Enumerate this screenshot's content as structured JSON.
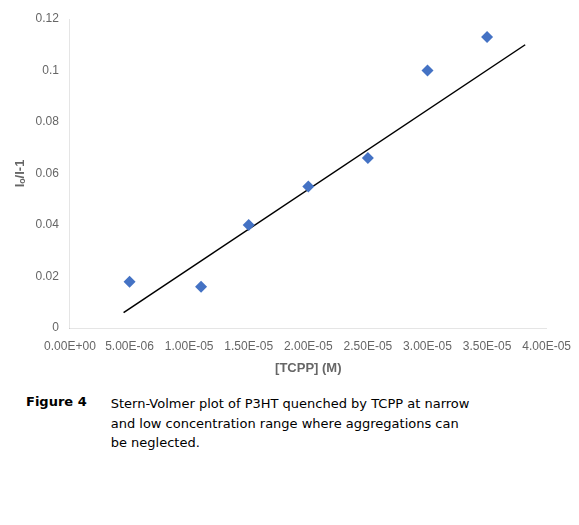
{
  "chart_data": {
    "type": "scatter",
    "x_label": "[TCPP] (M)",
    "y_label": "Iₒ/I-1",
    "annotations": [
      "Figure 4",
      "Stern-Volmer plot of P3HT quenched by TCPP at narrow\nand low concentration range where aggregations can\nbe neglected."
    ],
    "series": [
      {
        "type": "scatter",
        "marker": "diamond",
        "color": "#4472c4",
        "x": [
          5e-06,
          1.1e-05,
          1.5e-05,
          2e-05,
          2.5e-05,
          3e-05,
          3.5e-05
        ],
        "values": [
          0.018,
          0.016,
          0.04,
          0.055,
          0.066,
          0.1,
          0.113
        ]
      },
      {
        "type": "line",
        "color": "#000000",
        "x": [
          4.5e-06,
          3.82e-05
        ],
        "values": [
          0.006,
          0.11
        ]
      }
    ],
    "xlim": [
      0,
      4e-05
    ],
    "ylim": [
      0,
      0.12
    ],
    "xticks": [
      {
        "value": 0,
        "label": "0.00E+00"
      },
      {
        "value": 5e-06,
        "label": "5.00E-06"
      },
      {
        "value": 1e-05,
        "label": "1.00E-05"
      },
      {
        "value": 1.5e-05,
        "label": "1.50E-05"
      },
      {
        "value": 2e-05,
        "label": "2.00E-05"
      },
      {
        "value": 2.5e-05,
        "label": "2.50E-05"
      },
      {
        "value": 3e-05,
        "label": "3.00E-05"
      },
      {
        "value": 3.5e-05,
        "label": "3.50E-05"
      },
      {
        "value": 4e-05,
        "label": "4.00E-05"
      }
    ],
    "yticks": [
      0,
      0.02,
      0.04,
      0.06,
      0.08,
      0.1,
      0.12
    ],
    "grid": false
  }
}
